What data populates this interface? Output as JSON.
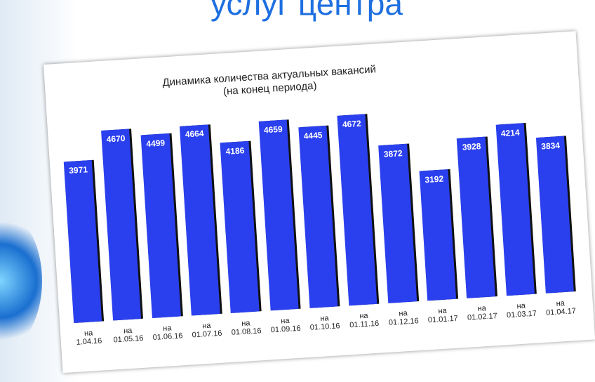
{
  "slide_title": "услуг центра",
  "chart_data": {
    "type": "bar",
    "title": "Динамика количества актуальных вакансий",
    "subtitle": "(на конец периода)",
    "categories": [
      "на 1.04.16",
      "на 01.05.16",
      "на 01.06.16",
      "на 01.07.16",
      "на 01.08.16",
      "на 01.09.16",
      "на 01.10.16",
      "на 01.11.16",
      "на 01.12.16",
      "на 01.01.17",
      "на 01.02.17",
      "на 01.03.17",
      "на 01.04.17"
    ],
    "values": [
      3971,
      4670,
      4499,
      4664,
      4186,
      4659,
      4445,
      4672,
      3872,
      3192,
      3928,
      4214,
      3834
    ],
    "color": "#2a40ee",
    "ylim": [
      0,
      5000
    ]
  }
}
